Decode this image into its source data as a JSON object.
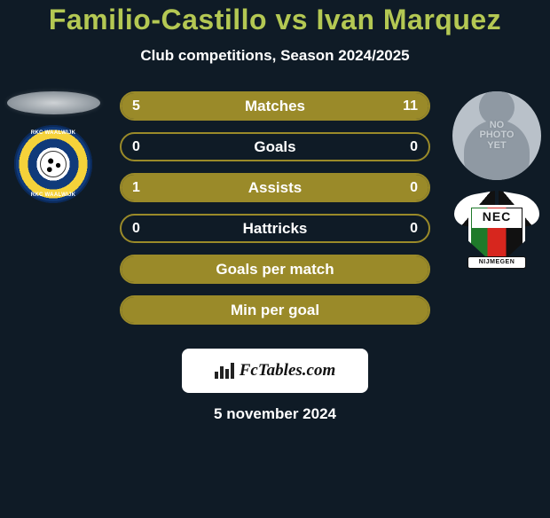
{
  "header": {
    "title_left": "Familio-Castillo",
    "title_vs": " vs ",
    "title_right": "Ivan Marquez",
    "subtitle": "Club competitions, Season 2024/2025",
    "title_color": "#b4c853",
    "subtitle_color": "#ffffff"
  },
  "background_color": "#0f1b26",
  "bar_color": "#9a8a29",
  "text_on_bar_color": "#ffffff",
  "bars": [
    {
      "label": "Matches",
      "left": "5",
      "right": "11",
      "left_pct": 31,
      "right_pct": 69
    },
    {
      "label": "Goals",
      "left": "0",
      "right": "0",
      "left_pct": 0,
      "right_pct": 0
    },
    {
      "label": "Assists",
      "left": "1",
      "right": "0",
      "left_pct": 100,
      "right_pct": 0
    },
    {
      "label": "Hattricks",
      "left": "0",
      "right": "0",
      "left_pct": 0,
      "right_pct": 0
    },
    {
      "label": "Goals per match",
      "left": "",
      "right": "",
      "left_pct": 100,
      "right_pct": 0,
      "full": true
    },
    {
      "label": "Min per goal",
      "left": "",
      "right": "",
      "left_pct": 100,
      "right_pct": 0,
      "full": true
    }
  ],
  "left_player": {
    "photo_type": "oval-smudge",
    "club": "RKC Waalwijk",
    "club_badge": "rkc"
  },
  "right_player": {
    "photo_type": "no-photo",
    "photo_text": "NO\nPHOTO\nYET",
    "club": "NEC Nijmegen",
    "club_badge": "nec",
    "nec_text": "NEC",
    "nec_banner": "NIJMEGEN"
  },
  "footer": {
    "brand": "FcTables.com",
    "date": "5 november 2024"
  }
}
